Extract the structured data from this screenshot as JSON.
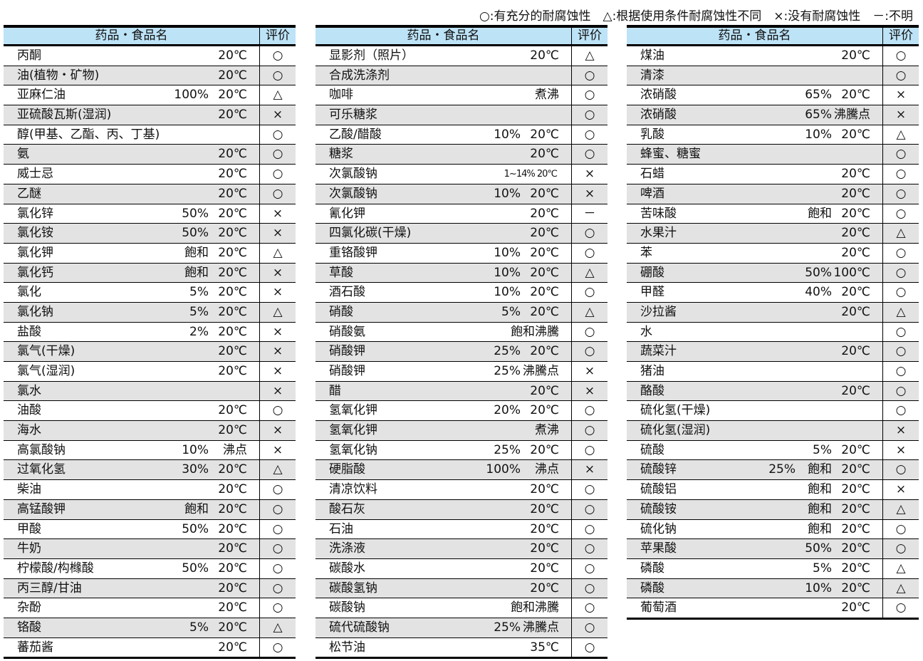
{
  "legend": "○:有充分的耐腐蚀性　△:根据使用条件耐腐蚀性不同　×:没有耐腐蚀性　－:不明",
  "header": {
    "name": "药品・食品名",
    "eval": "评价"
  },
  "tables": [
    {
      "rows": [
        {
          "name": "丙酮",
          "conc": "",
          "temp": "20℃",
          "eval": "○"
        },
        {
          "name": "油(植物・矿物)",
          "conc": "",
          "temp": "20℃",
          "eval": "○"
        },
        {
          "name": "亚麻仁油",
          "conc": "100%",
          "temp": "20℃",
          "eval": "△"
        },
        {
          "name": "亚硫酸瓦斯(湿润)",
          "conc": "",
          "temp": "20℃",
          "eval": "×"
        },
        {
          "name": "醇(甲基、乙酯、丙、丁基)",
          "conc": "",
          "temp": "",
          "eval": "○"
        },
        {
          "name": "氨",
          "conc": "",
          "temp": "20℃",
          "eval": "○"
        },
        {
          "name": "威士忌",
          "conc": "",
          "temp": "20℃",
          "eval": "○"
        },
        {
          "name": "乙醚",
          "conc": "",
          "temp": "20℃",
          "eval": "○"
        },
        {
          "name": "氯化锌",
          "conc": "50%",
          "temp": "20℃",
          "eval": "×"
        },
        {
          "name": "氯化铵",
          "conc": "50%",
          "temp": "20℃",
          "eval": "×"
        },
        {
          "name": "氯化钾",
          "conc": "飽和",
          "temp": "20℃",
          "eval": "△"
        },
        {
          "name": "氯化钙",
          "conc": "飽和",
          "temp": "20℃",
          "eval": "×"
        },
        {
          "name": "氯化",
          "conc": "5%",
          "temp": "20℃",
          "eval": "×"
        },
        {
          "name": "氯化钠",
          "conc": "5%",
          "temp": "20℃",
          "eval": "△"
        },
        {
          "name": "盐酸",
          "conc": "2%",
          "temp": "20℃",
          "eval": "×"
        },
        {
          "name": "氯气(干燥)",
          "conc": "",
          "temp": "20℃",
          "eval": "×"
        },
        {
          "name": "氯气(湿润)",
          "conc": "",
          "temp": "20℃",
          "eval": "×"
        },
        {
          "name": "氯水",
          "conc": "",
          "temp": "",
          "eval": "×"
        },
        {
          "name": "油酸",
          "conc": "",
          "temp": "20℃",
          "eval": "○"
        },
        {
          "name": "海水",
          "conc": "",
          "temp": "20℃",
          "eval": "×"
        },
        {
          "name": "高氯酸钠",
          "conc": "10%",
          "temp": "沸点",
          "eval": "×"
        },
        {
          "name": "过氧化氢",
          "conc": "30%",
          "temp": "20℃",
          "eval": "△"
        },
        {
          "name": "柴油",
          "conc": "",
          "temp": "20℃",
          "eval": "○"
        },
        {
          "name": "高锰酸钾",
          "conc": "飽和",
          "temp": "20℃",
          "eval": "○"
        },
        {
          "name": "甲酸",
          "conc": "50%",
          "temp": "20℃",
          "eval": "○"
        },
        {
          "name": "牛奶",
          "conc": "",
          "temp": "20℃",
          "eval": "○"
        },
        {
          "name": "柠檬酸/构橼酸",
          "conc": "50%",
          "temp": "20℃",
          "eval": "○"
        },
        {
          "name": "丙三醇/甘油",
          "conc": "",
          "temp": "20℃",
          "eval": "○"
        },
        {
          "name": "杂酚",
          "conc": "",
          "temp": "20℃",
          "eval": "○"
        },
        {
          "name": "铬酸",
          "conc": "5%",
          "temp": "20℃",
          "eval": "△"
        },
        {
          "name": "蕃茄酱",
          "conc": "",
          "temp": "20℃",
          "eval": "○"
        }
      ]
    },
    {
      "rows": [
        {
          "name": "显影剂（照片）",
          "conc": "",
          "temp": "20℃",
          "eval": "△"
        },
        {
          "name": "合成洗涤剂",
          "conc": "",
          "temp": "",
          "eval": "○"
        },
        {
          "name": "咖啡",
          "conc": "",
          "temp": "煮沸",
          "eval": "○"
        },
        {
          "name": "可乐糖浆",
          "conc": "",
          "temp": "",
          "eval": "○"
        },
        {
          "name": "乙酸/醋酸",
          "conc": "10%",
          "temp": "20℃",
          "eval": "○"
        },
        {
          "name": "糖浆",
          "conc": "",
          "temp": "20℃",
          "eval": "○"
        },
        {
          "name": "次氯酸钠",
          "conc": "",
          "temp": "1~14% 20℃",
          "eval": "×",
          "small": true
        },
        {
          "name": "次氯酸钠",
          "conc": "10%",
          "temp": "20℃",
          "eval": "×"
        },
        {
          "name": "氰化钾",
          "conc": "",
          "temp": "20℃",
          "eval": "－"
        },
        {
          "name": "四氯化碳(干燥)",
          "conc": "",
          "temp": "20℃",
          "eval": "○"
        },
        {
          "name": "重铬酸钾",
          "conc": "10%",
          "temp": "20℃",
          "eval": "○"
        },
        {
          "name": "草酸",
          "conc": "10%",
          "temp": "20℃",
          "eval": "△"
        },
        {
          "name": "酒石酸",
          "conc": "10%",
          "temp": "20℃",
          "eval": "○"
        },
        {
          "name": "硝酸",
          "conc": "5%",
          "temp": "20℃",
          "eval": "△"
        },
        {
          "name": "硝酸氨",
          "conc": "",
          "temp": "飽和沸騰",
          "eval": "○"
        },
        {
          "name": "硝酸钾",
          "conc": "25%",
          "temp": "20℃",
          "eval": "○"
        },
        {
          "name": "硝酸钾",
          "conc": "25%",
          "temp": "沸騰点",
          "eval": "×"
        },
        {
          "name": "醋",
          "conc": "",
          "temp": "20℃",
          "eval": "×"
        },
        {
          "name": "氢氧化钾",
          "conc": "20%",
          "temp": "20℃",
          "eval": "○"
        },
        {
          "name": "氢氧化钾",
          "conc": "",
          "temp": "煮沸",
          "eval": "○"
        },
        {
          "name": "氢氧化钠",
          "conc": "25%",
          "temp": "20℃",
          "eval": "○"
        },
        {
          "name": "硬脂酸",
          "conc": "100%",
          "temp": "沸点",
          "eval": "×"
        },
        {
          "name": "清凉饮料",
          "conc": "",
          "temp": "20℃",
          "eval": "○"
        },
        {
          "name": "酸石灰",
          "conc": "",
          "temp": "20℃",
          "eval": "○"
        },
        {
          "name": "石油",
          "conc": "",
          "temp": "20℃",
          "eval": "○"
        },
        {
          "name": "洗涤液",
          "conc": "",
          "temp": "20℃",
          "eval": "○"
        },
        {
          "name": "碳酸水",
          "conc": "",
          "temp": "20℃",
          "eval": "○"
        },
        {
          "name": "碳酸氢钠",
          "conc": "",
          "temp": "20℃",
          "eval": "○"
        },
        {
          "name": "碳酸钠",
          "conc": "",
          "temp": "飽和沸騰",
          "eval": "○"
        },
        {
          "name": "硫代硫酸钠",
          "conc": "25%",
          "temp": "沸騰点",
          "eval": "○"
        },
        {
          "name": "松节油",
          "conc": "",
          "temp": "35℃",
          "eval": "○"
        }
      ]
    },
    {
      "rows": [
        {
          "name": "煤油",
          "conc": "",
          "temp": "20℃",
          "eval": "○"
        },
        {
          "name": "清漆",
          "conc": "",
          "temp": "",
          "eval": "○"
        },
        {
          "name": "浓硝酸",
          "conc": "65%",
          "temp": "20℃",
          "eval": "×"
        },
        {
          "name": "浓硝酸",
          "conc": "65%",
          "temp": "沸騰点",
          "eval": "×"
        },
        {
          "name": "乳酸",
          "conc": "10%",
          "temp": "20℃",
          "eval": "△"
        },
        {
          "name": "蜂蜜、糖蜜",
          "conc": "",
          "temp": "",
          "eval": "○"
        },
        {
          "name": "石蜡",
          "conc": "",
          "temp": "20℃",
          "eval": "○"
        },
        {
          "name": "啤酒",
          "conc": "",
          "temp": "20℃",
          "eval": "○"
        },
        {
          "name": "苦味酸",
          "conc": "飽和",
          "temp": "20℃",
          "eval": "○"
        },
        {
          "name": "水果汁",
          "conc": "",
          "temp": "20℃",
          "eval": "△"
        },
        {
          "name": "苯",
          "conc": "",
          "temp": "20℃",
          "eval": "○"
        },
        {
          "name": "硼酸",
          "conc": "50%",
          "temp": "100℃",
          "eval": "○"
        },
        {
          "name": "甲醛",
          "conc": "40%",
          "temp": "20℃",
          "eval": "○"
        },
        {
          "name": "沙拉酱",
          "conc": "",
          "temp": "20℃",
          "eval": "△"
        },
        {
          "name": "水",
          "conc": "",
          "temp": "",
          "eval": "○"
        },
        {
          "name": "蔬菜汁",
          "conc": "",
          "temp": "20℃",
          "eval": "○"
        },
        {
          "name": "猪油",
          "conc": "",
          "temp": "",
          "eval": "○"
        },
        {
          "name": "酪酸",
          "conc": "",
          "temp": "20℃",
          "eval": "○"
        },
        {
          "name": "硫化氢(干燥)",
          "conc": "",
          "temp": "",
          "eval": "○"
        },
        {
          "name": "硫化氢(湿润)",
          "conc": "",
          "temp": "",
          "eval": "×"
        },
        {
          "name": "硫酸",
          "conc": "5%",
          "temp": "20℃",
          "eval": "×"
        },
        {
          "name": "硫酸锌",
          "conc": "25%　飽和",
          "temp": "20℃",
          "eval": "○"
        },
        {
          "name": "硫酸铝",
          "conc": "飽和",
          "temp": "20℃",
          "eval": "×"
        },
        {
          "name": "硫酸铵",
          "conc": "飽和",
          "temp": "20℃",
          "eval": "△"
        },
        {
          "name": "硫化钠",
          "conc": "飽和",
          "temp": "20℃",
          "eval": "○"
        },
        {
          "name": "苹果酸",
          "conc": "50%",
          "temp": "20℃",
          "eval": "○"
        },
        {
          "name": "磷酸",
          "conc": "5%",
          "temp": "20℃",
          "eval": "△"
        },
        {
          "name": "磷酸",
          "conc": "10%",
          "temp": "20℃",
          "eval": "△"
        },
        {
          "name": "葡萄酒",
          "conc": "",
          "temp": "20℃",
          "eval": "○"
        }
      ]
    }
  ]
}
